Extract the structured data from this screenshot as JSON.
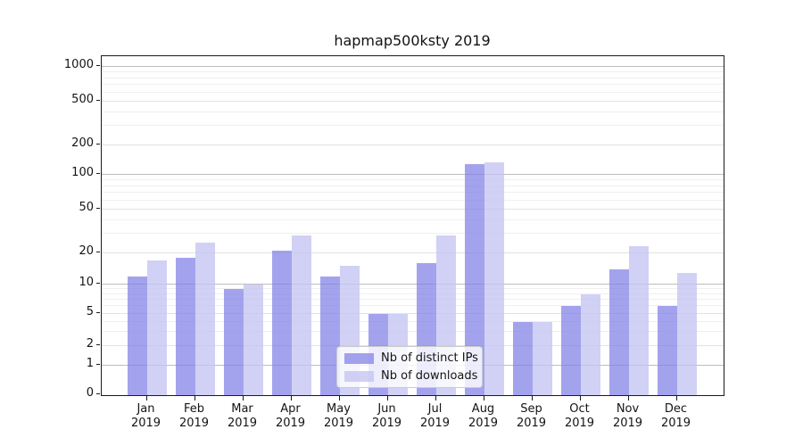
{
  "chart_data": {
    "type": "bar",
    "title": "hapmap500ksty 2019",
    "x_months": [
      "Jan",
      "Feb",
      "Mar",
      "Apr",
      "May",
      "Jun",
      "Jul",
      "Aug",
      "Sep",
      "Oct",
      "Nov",
      "Dec"
    ],
    "x_year": "2019",
    "series": [
      {
        "name": "Nb of distinct IPs",
        "color": "#8080e6",
        "opacity": 0.72,
        "values": [
          12,
          18,
          9,
          21,
          12,
          5,
          16,
          130,
          4,
          6,
          14,
          6
        ]
      },
      {
        "name": "Nb of downloads",
        "color": "#c4c4f2",
        "opacity": 0.78,
        "values": [
          17,
          25,
          10,
          29,
          15,
          5,
          29,
          135,
          4,
          8,
          23,
          13
        ]
      }
    ],
    "y_ticks": [
      0,
      1,
      2,
      5,
      10,
      20,
      50,
      100,
      200,
      500,
      1000
    ],
    "y_minor_ticks": [
      3,
      4,
      6,
      7,
      8,
      9,
      30,
      40,
      60,
      70,
      80,
      90,
      300,
      400,
      600,
      700,
      800,
      900
    ],
    "y_scale": "symlog",
    "ylim": [
      0,
      1100
    ],
    "grid": true,
    "legend_position": "lower center",
    "axis_color": "#1a1a1a",
    "grid_color_major": "#bdbdbd",
    "grid_color_minor": "#efefef"
  }
}
